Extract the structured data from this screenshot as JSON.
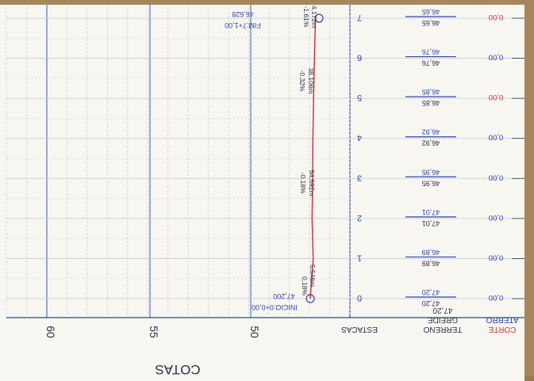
{
  "sheet": {
    "axis_title": "COTAS",
    "elevation_ticks": [
      "50",
      "55",
      "60"
    ],
    "row_labels": {
      "estacas": "ESTACAS",
      "terreno": "TERRENO",
      "greide": "GREIDE",
      "corte": "CORTE",
      "aterro": "ATERRO"
    },
    "first_station_greide": "47,20",
    "start_annotation": {
      "station": "INICIO:0+0,00",
      "elevation": "47,200"
    },
    "end_annotation": {
      "station": "FIM:7+1,00",
      "elevation": "46,628"
    },
    "segments": [
      {
        "grade": "0.18%",
        "length": "5.546m"
      },
      {
        "grade": "-0.18%",
        "length": "54.592m"
      },
      {
        "grade": "-0.32%",
        "length": "38.106m"
      },
      {
        "grade": "-1.61%",
        "length": "4.172m"
      }
    ],
    "stations": [
      {
        "label": "0",
        "terreno": "47,20",
        "greide": "47,20",
        "corte": "",
        "aterro": "0,00"
      },
      {
        "label": "1",
        "terreno": "46,89",
        "greide": "46,89",
        "corte": "",
        "aterro": "0,00"
      },
      {
        "label": "2",
        "terreno": "47,01",
        "greide": "47,01",
        "corte": "",
        "aterro": "0,00"
      },
      {
        "label": "3",
        "terreno": "46,95",
        "greide": "46,95",
        "corte": "",
        "aterro": "0,00"
      },
      {
        "label": "4",
        "terreno": "46,92",
        "greide": "46,92",
        "corte": "",
        "aterro": "0,00"
      },
      {
        "label": "5",
        "terreno": "46,85",
        "greide": "46,85",
        "corte": "0,00",
        "aterro": ""
      },
      {
        "label": "6",
        "terreno": "46,76",
        "greide": "46,76",
        "corte": "",
        "aterro": "0,00"
      },
      {
        "label": "7",
        "terreno": "46,65",
        "greide": "46,65",
        "corte": "0,00",
        "aterro": ""
      }
    ],
    "colors": {
      "paper": "#f7f6f1",
      "grid": "#c6cad4",
      "axis": "#2c45a8",
      "profile": "#cf2a3a",
      "corte": "#d2323e",
      "aterro": "#2a46a3",
      "text": "#2b2f47",
      "wood": "#a8865c"
    }
  }
}
